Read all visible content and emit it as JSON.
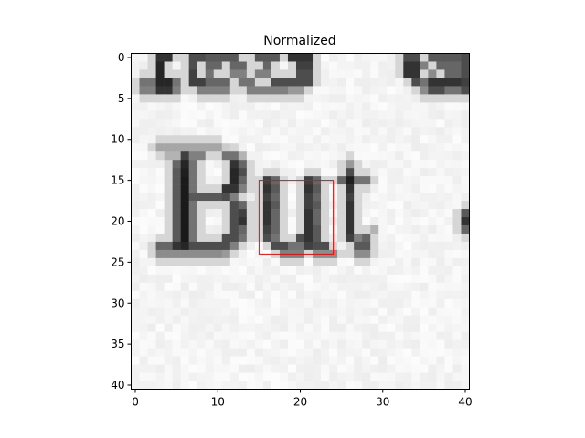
{
  "chart_data": {
    "type": "heatmap",
    "title": "Normalized",
    "xlabel": "",
    "ylabel": "",
    "x_ticks": [
      0,
      10,
      20,
      30,
      40
    ],
    "y_ticks": [
      0,
      5,
      10,
      15,
      20,
      25,
      30,
      35,
      40
    ],
    "xlim": [
      -0.5,
      40.5
    ],
    "ylim": [
      40.5,
      -0.5
    ],
    "colormap": "gray",
    "grid_size": [
      41,
      41
    ],
    "text_in_image": "But",
    "highlight_box": {
      "x0": 15,
      "y0": 15,
      "x1": 24,
      "y1": 24,
      "color": "#ff0000"
    },
    "dark_rows": [
      {
        "r": 0,
        "x": [
          [
            3,
            4,
            0.2
          ],
          [
            7,
            8,
            0.3
          ],
          [
            9,
            12,
            0.35
          ],
          [
            15,
            17,
            0.35
          ],
          [
            19,
            21,
            0.2
          ],
          [
            33,
            34,
            0.3
          ],
          [
            36,
            39,
            0.35
          ],
          [
            40,
            40,
            0.3
          ]
        ]
      },
      {
        "r": 1,
        "x": [
          [
            3,
            3,
            0.15
          ],
          [
            7,
            7,
            0.3
          ],
          [
            9,
            10,
            0.4
          ],
          [
            12,
            13,
            0.4
          ],
          [
            16,
            16,
            0.4
          ],
          [
            20,
            21,
            0.25
          ],
          [
            33,
            34,
            0.2
          ],
          [
            35,
            35,
            0.5
          ],
          [
            37,
            39,
            0.4
          ],
          [
            40,
            40,
            0.3
          ]
        ]
      },
      {
        "r": 2,
        "x": [
          [
            3,
            3,
            0.15
          ],
          [
            7,
            7,
            0.25
          ],
          [
            9,
            9,
            0.45
          ],
          [
            12,
            13,
            0.5
          ],
          [
            15,
            16,
            0.5
          ],
          [
            20,
            21,
            0.3
          ],
          [
            33,
            34,
            0.2
          ],
          [
            36,
            36,
            0.55
          ],
          [
            38,
            39,
            0.4
          ],
          [
            40,
            40,
            0.3
          ]
        ]
      },
      {
        "r": 3,
        "x": [
          [
            1,
            2,
            0.45
          ],
          [
            3,
            4,
            0.15
          ],
          [
            5,
            5,
            0.45
          ],
          [
            7,
            8,
            0.25
          ],
          [
            9,
            11,
            0.4
          ],
          [
            13,
            14,
            0.45
          ],
          [
            17,
            21,
            0.3
          ],
          [
            34,
            34,
            0.3
          ],
          [
            35,
            35,
            0.45
          ],
          [
            36,
            39,
            0.2
          ],
          [
            40,
            40,
            0.25
          ]
        ]
      },
      {
        "r": 4,
        "x": [
          [
            1,
            2,
            0.5
          ],
          [
            3,
            4,
            0.2
          ],
          [
            5,
            5,
            0.5
          ],
          [
            8,
            11,
            0.5
          ],
          [
            14,
            18,
            0.5
          ],
          [
            19,
            20,
            0.6
          ],
          [
            35,
            35,
            0.55
          ],
          [
            36,
            37,
            0.3
          ],
          [
            38,
            39,
            0.45
          ],
          [
            40,
            40,
            0.3
          ]
        ]
      },
      {
        "r": 11,
        "x": [
          [
            3,
            10,
            0.65
          ],
          [
            11,
            11,
            0.8
          ]
        ]
      },
      {
        "r": 12,
        "x": [
          [
            4,
            5,
            0.7
          ],
          [
            6,
            6,
            0.25
          ],
          [
            7,
            8,
            0.5
          ],
          [
            11,
            12,
            0.45
          ],
          [
            13,
            13,
            0.7
          ]
        ]
      },
      {
        "r": 13,
        "x": [
          [
            5,
            5,
            0.4
          ],
          [
            6,
            6,
            0.15
          ],
          [
            7,
            7,
            0.45
          ],
          [
            12,
            12,
            0.2
          ],
          [
            13,
            13,
            0.4
          ],
          [
            26,
            26,
            0.6
          ]
        ]
      },
      {
        "r": 14,
        "x": [
          [
            5,
            5,
            0.35
          ],
          [
            6,
            6,
            0.12
          ],
          [
            7,
            7,
            0.45
          ],
          [
            12,
            12,
            0.15
          ],
          [
            13,
            13,
            0.3
          ],
          [
            26,
            26,
            0.3
          ]
        ]
      },
      {
        "r": 15,
        "x": [
          [
            5,
            5,
            0.35
          ],
          [
            6,
            6,
            0.1
          ],
          [
            7,
            7,
            0.45
          ],
          [
            12,
            12,
            0.15
          ],
          [
            13,
            13,
            0.4
          ],
          [
            16,
            16,
            0.25
          ],
          [
            17,
            17,
            0.4
          ],
          [
            21,
            21,
            0.25
          ],
          [
            22,
            22,
            0.4
          ],
          [
            25,
            25,
            0.4
          ],
          [
            26,
            26,
            0.12
          ],
          [
            27,
            28,
            0.45
          ]
        ]
      },
      {
        "r": 16,
        "x": [
          [
            5,
            5,
            0.35
          ],
          [
            6,
            6,
            0.1
          ],
          [
            7,
            7,
            0.45
          ],
          [
            11,
            12,
            0.2
          ],
          [
            13,
            13,
            0.5
          ],
          [
            16,
            16,
            0.2
          ],
          [
            17,
            17,
            0.35
          ],
          [
            21,
            21,
            0.2
          ],
          [
            22,
            22,
            0.35
          ],
          [
            26,
            26,
            0.2
          ]
        ]
      },
      {
        "r": 17,
        "x": [
          [
            5,
            5,
            0.35
          ],
          [
            6,
            6,
            0.1
          ],
          [
            7,
            10,
            0.35
          ],
          [
            11,
            11,
            0.3
          ],
          [
            12,
            12,
            0.5
          ],
          [
            16,
            16,
            0.25
          ],
          [
            17,
            17,
            0.4
          ],
          [
            21,
            21,
            0.25
          ],
          [
            22,
            22,
            0.4
          ],
          [
            26,
            26,
            0.25
          ]
        ]
      },
      {
        "r": 18,
        "x": [
          [
            5,
            5,
            0.35
          ],
          [
            6,
            6,
            0.1
          ],
          [
            7,
            7,
            0.45
          ],
          [
            12,
            12,
            0.3
          ],
          [
            13,
            13,
            0.4
          ],
          [
            16,
            16,
            0.2
          ],
          [
            17,
            17,
            0.35
          ],
          [
            21,
            21,
            0.25
          ],
          [
            22,
            22,
            0.35
          ],
          [
            26,
            26,
            0.2
          ]
        ]
      },
      {
        "r": 19,
        "x": [
          [
            5,
            5,
            0.35
          ],
          [
            6,
            6,
            0.1
          ],
          [
            7,
            7,
            0.45
          ],
          [
            12,
            12,
            0.3
          ],
          [
            13,
            13,
            0.25
          ],
          [
            16,
            16,
            0.2
          ],
          [
            17,
            17,
            0.4
          ],
          [
            21,
            21,
            0.2
          ],
          [
            22,
            22,
            0.4
          ],
          [
            26,
            26,
            0.2
          ],
          [
            40,
            40,
            0.35
          ]
        ]
      },
      {
        "r": 20,
        "x": [
          [
            5,
            5,
            0.35
          ],
          [
            6,
            6,
            0.1
          ],
          [
            7,
            7,
            0.45
          ],
          [
            12,
            12,
            0.3
          ],
          [
            13,
            13,
            0.2
          ],
          [
            16,
            16,
            0.2
          ],
          [
            17,
            17,
            0.4
          ],
          [
            21,
            21,
            0.2
          ],
          [
            22,
            22,
            0.4
          ],
          [
            26,
            26,
            0.2
          ],
          [
            40,
            40,
            0.2
          ]
        ]
      },
      {
        "r": 21,
        "x": [
          [
            5,
            5,
            0.35
          ],
          [
            6,
            6,
            0.1
          ],
          [
            7,
            7,
            0.45
          ],
          [
            12,
            12,
            0.3
          ],
          [
            13,
            13,
            0.4
          ],
          [
            16,
            16,
            0.25
          ],
          [
            17,
            17,
            0.4
          ],
          [
            21,
            21,
            0.2
          ],
          [
            22,
            22,
            0.35
          ],
          [
            26,
            26,
            0.2
          ],
          [
            29,
            29,
            0.7
          ],
          [
            40,
            40,
            0.4
          ]
        ]
      },
      {
        "r": 22,
        "x": [
          [
            5,
            5,
            0.35
          ],
          [
            6,
            6,
            0.1
          ],
          [
            7,
            7,
            0.45
          ],
          [
            11,
            12,
            0.3
          ],
          [
            13,
            13,
            0.45
          ],
          [
            16,
            16,
            0.3
          ],
          [
            17,
            17,
            0.45
          ],
          [
            20,
            20,
            0.3
          ],
          [
            21,
            21,
            0.2
          ],
          [
            22,
            22,
            0.35
          ],
          [
            26,
            26,
            0.25
          ],
          [
            27,
            27,
            0.5
          ],
          [
            28,
            28,
            0.4
          ]
        ]
      },
      {
        "r": 23,
        "x": [
          [
            3,
            4,
            0.4
          ],
          [
            5,
            5,
            0.2
          ],
          [
            6,
            6,
            0.15
          ],
          [
            7,
            11,
            0.3
          ],
          [
            12,
            12,
            0.5
          ],
          [
            17,
            18,
            0.3
          ],
          [
            19,
            20,
            0.45
          ],
          [
            21,
            21,
            0.25
          ],
          [
            22,
            23,
            0.3
          ],
          [
            27,
            28,
            0.35
          ]
        ]
      },
      {
        "r": 24,
        "x": [
          [
            3,
            10,
            0.55
          ],
          [
            11,
            11,
            0.6
          ],
          [
            18,
            20,
            0.5
          ],
          [
            22,
            24,
            0.55
          ],
          [
            27,
            28,
            0.55
          ]
        ]
      }
    ]
  }
}
